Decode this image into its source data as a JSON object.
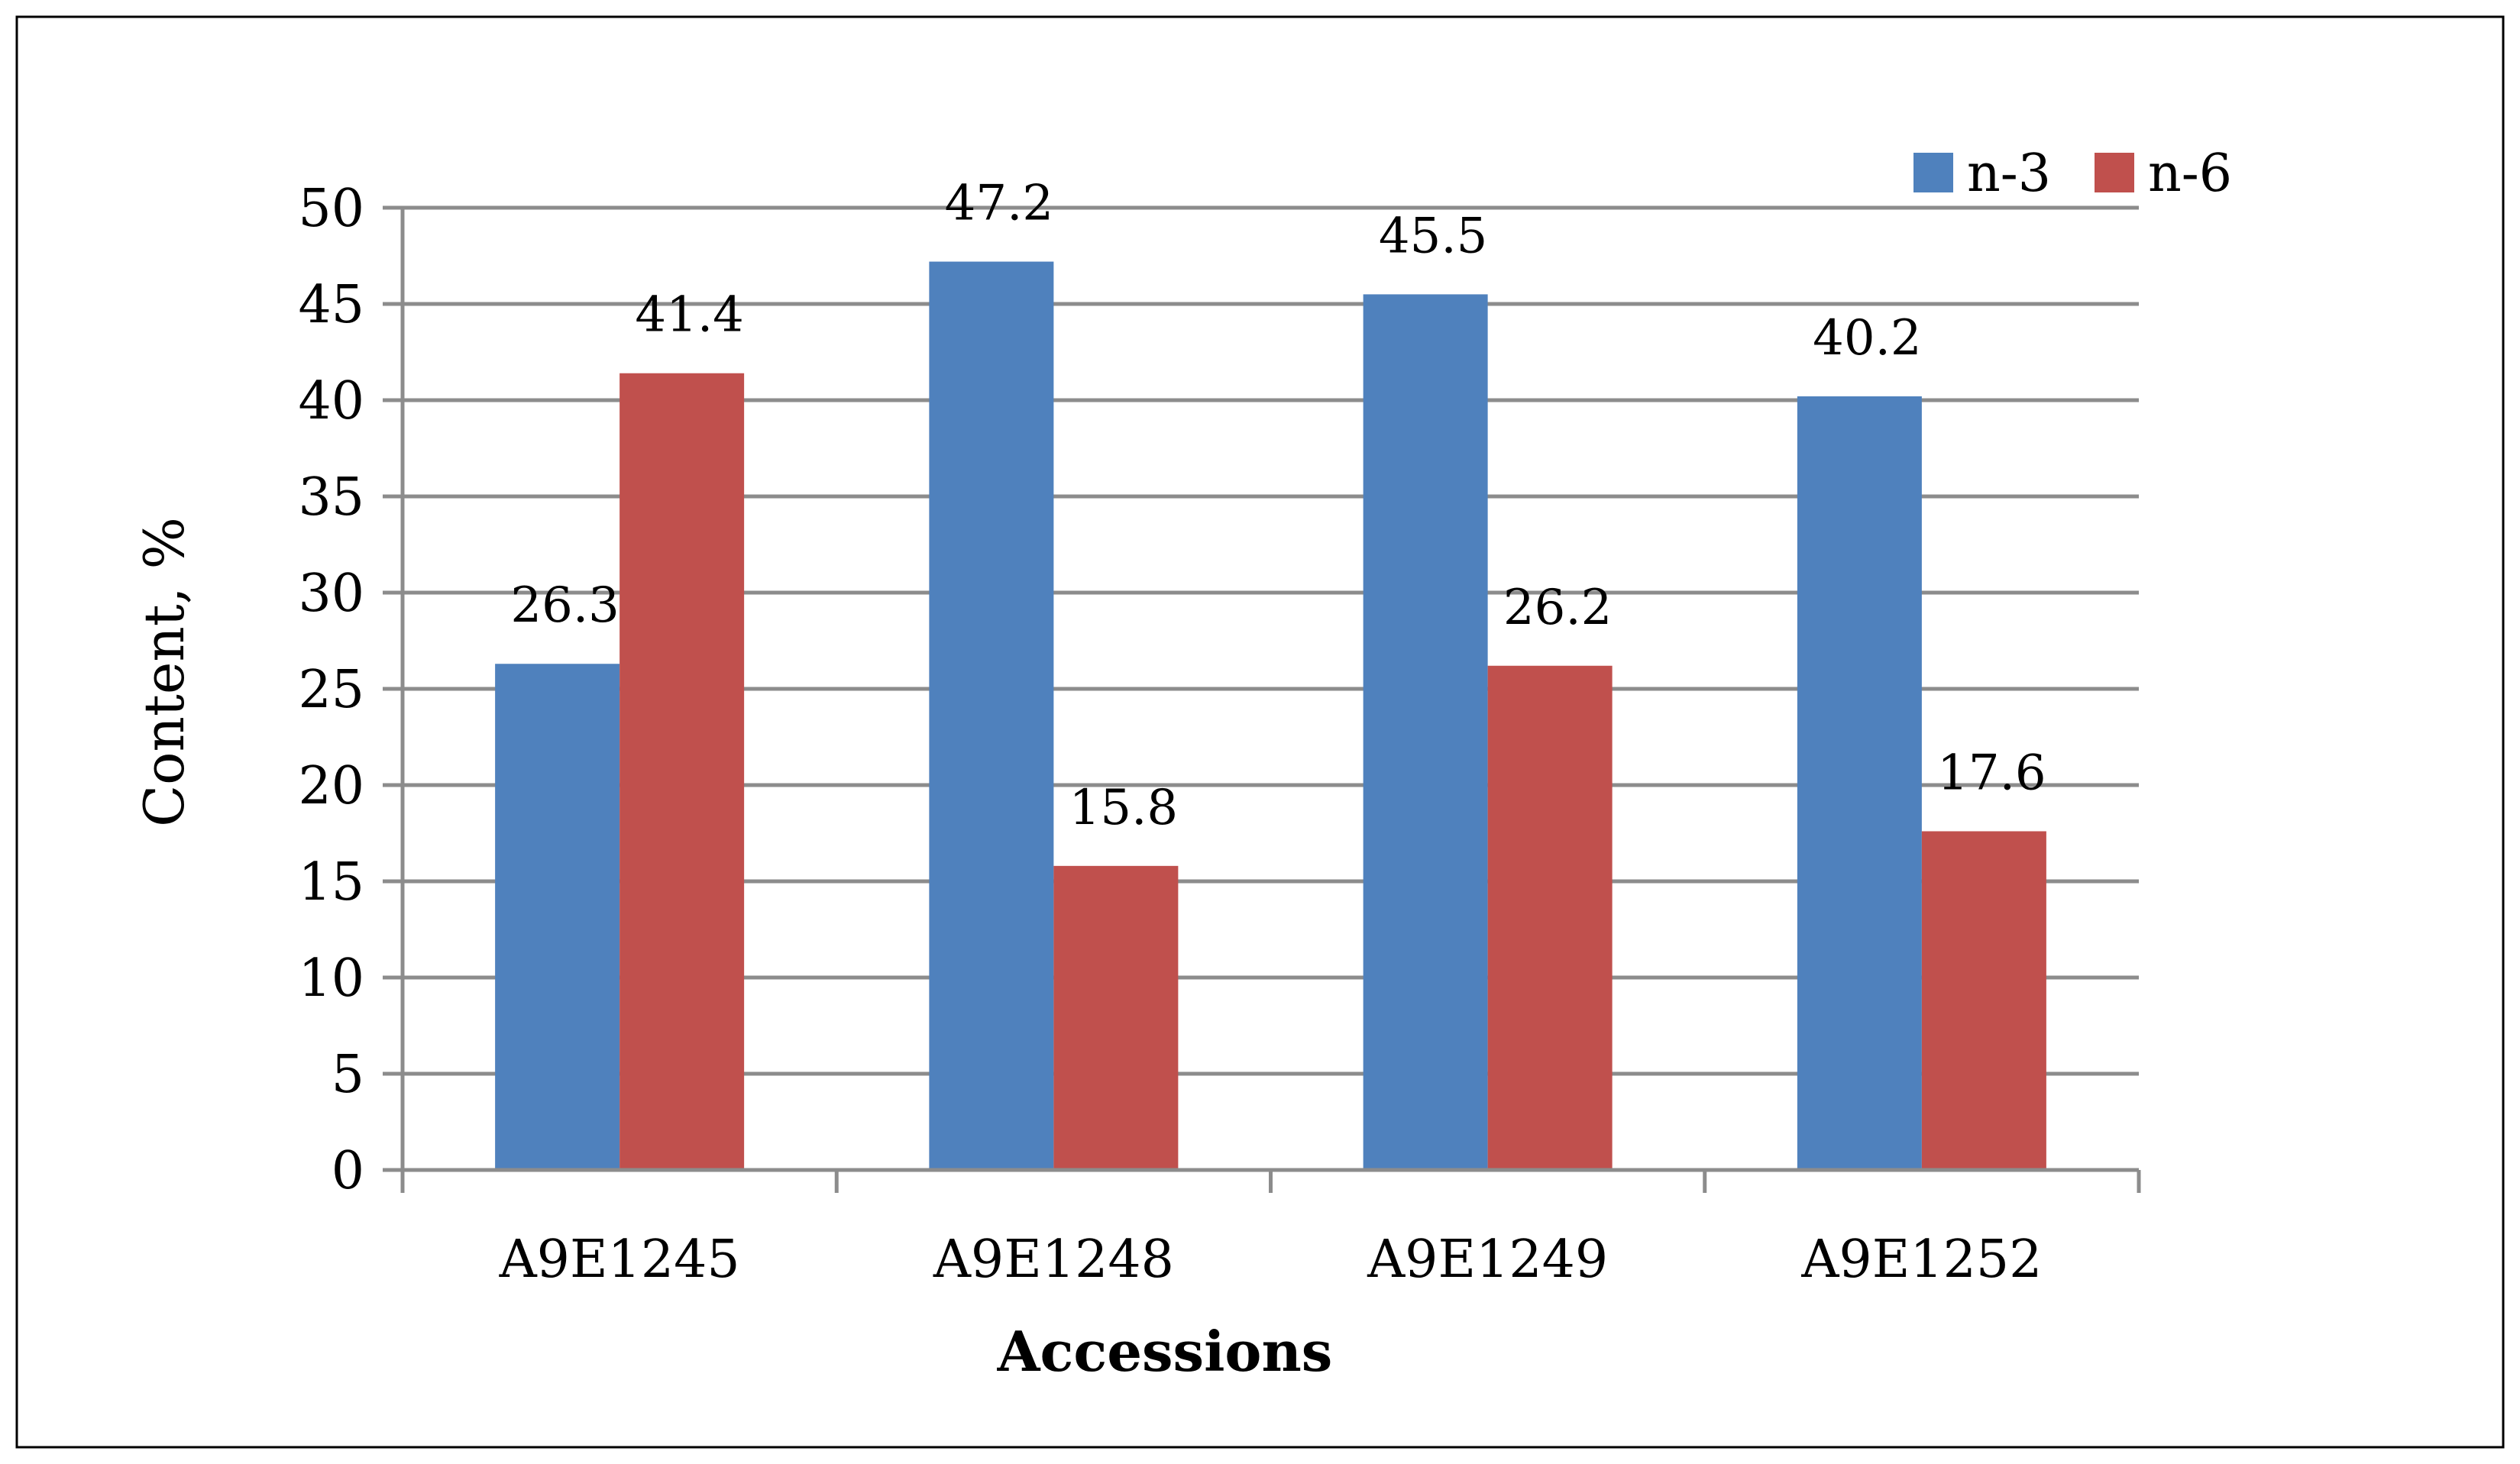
{
  "chart_data": {
    "type": "bar",
    "title": "",
    "xlabel": "Accessions",
    "ylabel": "Content, %",
    "categories": [
      "A9E1245",
      "A9E1248",
      "A9E1249",
      "A9E1252"
    ],
    "series": [
      {
        "name": "n-3",
        "color": "#4f81bd",
        "values": [
          26.3,
          47.2,
          45.5,
          40.2
        ]
      },
      {
        "name": "n-6",
        "color": "#c0504d",
        "values": [
          41.4,
          15.8,
          26.2,
          17.6
        ]
      }
    ],
    "ylim": [
      0,
      50
    ],
    "yticks": [
      0,
      5,
      10,
      15,
      20,
      25,
      30,
      35,
      40,
      45,
      50
    ],
    "grid": true,
    "legend": "top-right",
    "data_labels": true
  }
}
